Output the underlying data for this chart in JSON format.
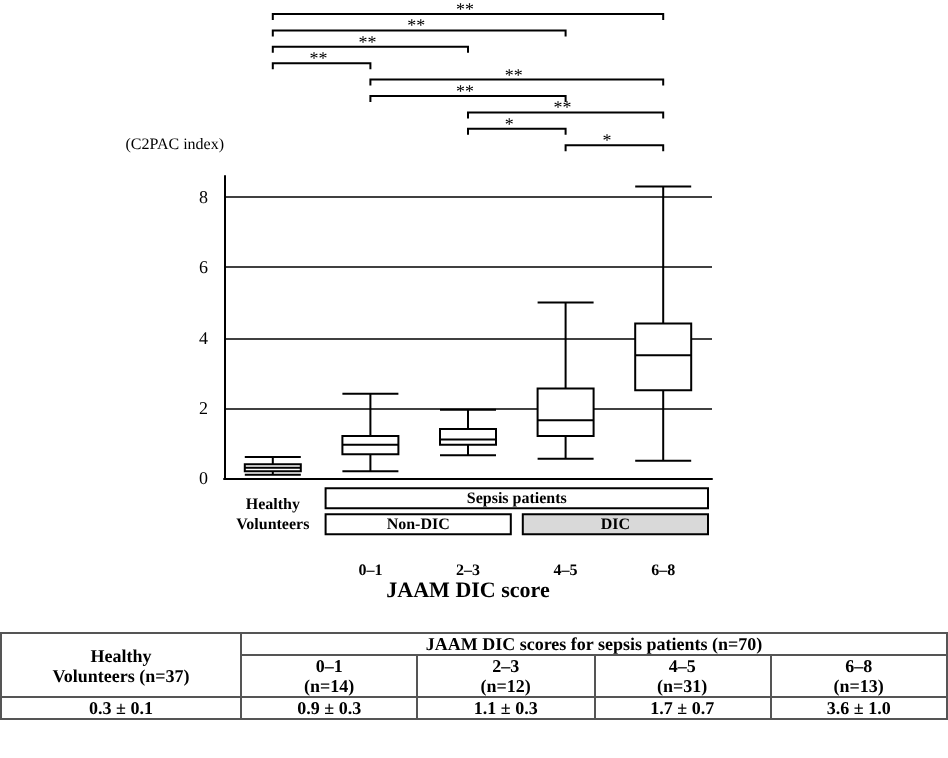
{
  "chart_data": {
    "type": "box",
    "ylabel": "(C2PAC index)",
    "xlabel": "JAAM DIC score",
    "categories": [
      "Healthy Volunteers",
      "0–1",
      "2–3",
      "4–5",
      "6–8"
    ],
    "boxes": [
      {
        "low": 0.1,
        "q1": 0.2,
        "median": 0.3,
        "q3": 0.4,
        "high": 0.6
      },
      {
        "low": 0.2,
        "q1": 0.68,
        "median": 0.95,
        "q3": 1.2,
        "high": 2.4
      },
      {
        "low": 0.65,
        "q1": 0.95,
        "median": 1.1,
        "q3": 1.4,
        "high": 1.95
      },
      {
        "low": 0.55,
        "q1": 1.2,
        "median": 1.65,
        "q3": 2.55,
        "high": 5.0
      },
      {
        "low": 0.5,
        "q1": 2.5,
        "median": 3.5,
        "q3": 4.4,
        "high": 8.3
      }
    ],
    "color": "#000000",
    "ylim": [
      0,
      8.6
    ],
    "yticks": [
      0,
      2,
      4,
      6,
      8
    ],
    "grid": "y",
    "annotations": [
      "**",
      "**",
      "**",
      "**",
      "**",
      "**",
      "**",
      "*",
      "*",
      "Sepsis patients",
      "Non-DIC",
      "DIC",
      "Healthy\nVolunteers (n=37)",
      "JAAM DIC scores for sepsis patients (n=70)",
      "0–1\n(n=14)",
      "2–3\n(n=12)",
      "4–5\n(n=31)",
      "6–8\n(n=13)",
      "0.3 ± 0.1",
      "0.9 ± 0.3",
      "1.1 ± 0.3",
      "1.7 ± 0.7",
      "3.6 ± 1.0"
    ]
  }
}
